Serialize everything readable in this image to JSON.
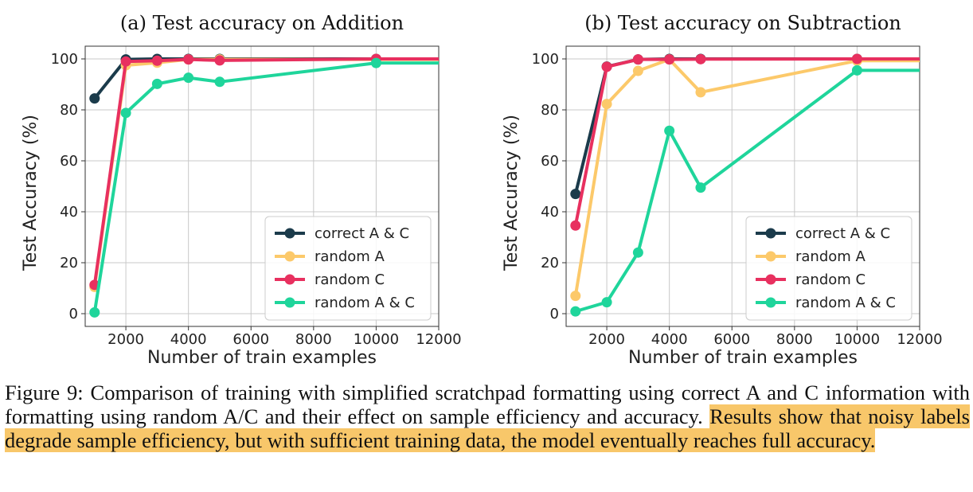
{
  "chart_data": [
    {
      "type": "line",
      "title": "(a) Test accuracy on Addition",
      "xlabel": "Number of train examples",
      "ylabel": "Test Accuracy (%)",
      "xlim": [
        700,
        12000
      ],
      "ylim": [
        -5,
        105
      ],
      "xticks": [
        2000,
        4000,
        6000,
        8000,
        10000,
        12000
      ],
      "yticks": [
        0,
        20,
        40,
        60,
        80,
        100
      ],
      "grid": true,
      "legend": "bottom-right",
      "series": [
        {
          "name": "correct A & C",
          "color": "#1b3b4b",
          "x": [
            1000,
            2000,
            3000,
            4000,
            5000,
            10000
          ],
          "y": [
            84.5,
            99.8,
            100,
            100,
            100,
            100
          ]
        },
        {
          "name": "random A",
          "color": "#fcc96a",
          "x": [
            1000,
            2000,
            3000,
            4000,
            5000,
            10000
          ],
          "y": [
            10.5,
            97.5,
            98.5,
            99.8,
            99.8,
            99.8
          ]
        },
        {
          "name": "random C",
          "color": "#e8305f",
          "x": [
            1000,
            2000,
            3000,
            4000,
            5000,
            10000
          ],
          "y": [
            11.3,
            99,
            99.3,
            99.8,
            99.4,
            100
          ]
        },
        {
          "name": "random A & C",
          "color": "#1fd59b",
          "x": [
            1000,
            2000,
            3000,
            4000,
            5000,
            10000
          ],
          "y": [
            0.5,
            78.8,
            90.2,
            92.6,
            91,
            98.4
          ]
        }
      ]
    },
    {
      "type": "line",
      "title": "(b) Test accuracy on Subtraction",
      "xlabel": "Number of train examples",
      "ylabel": "Test Accuracy (%)",
      "xlim": [
        700,
        12000
      ],
      "ylim": [
        -5,
        105
      ],
      "xticks": [
        2000,
        4000,
        6000,
        8000,
        10000,
        12000
      ],
      "yticks": [
        0,
        20,
        40,
        60,
        80,
        100
      ],
      "grid": true,
      "legend": "bottom-right",
      "series": [
        {
          "name": "correct A & C",
          "color": "#1b3b4b",
          "x": [
            1000,
            2000,
            3000,
            4000,
            5000,
            10000
          ],
          "y": [
            47,
            97,
            99.8,
            100,
            100,
            100
          ]
        },
        {
          "name": "random A",
          "color": "#fcc96a",
          "x": [
            1000,
            2000,
            3000,
            4000,
            5000,
            10000
          ],
          "y": [
            7,
            82.3,
            95.3,
            99.8,
            86.9,
            99.3
          ]
        },
        {
          "name": "random C",
          "color": "#e8305f",
          "x": [
            1000,
            2000,
            3000,
            4000,
            5000,
            10000
          ],
          "y": [
            34.6,
            96.9,
            99.8,
            99.8,
            99.9,
            100
          ]
        },
        {
          "name": "random A & C",
          "color": "#1fd59b",
          "x": [
            1000,
            2000,
            3000,
            4000,
            5000,
            10000
          ],
          "y": [
            0.9,
            4.5,
            24,
            71.8,
            49.5,
            95.5
          ]
        }
      ]
    }
  ],
  "caption": {
    "part1": "Figure 9: Comparison of training with simplified scratchpad formatting using correct A and C information with formatting using random A/C and their effect on sample efficiency and accuracy. ",
    "highlighted": "Results show that noisy labels degrade sample efficiency, but with sufficient training data, the model eventually reaches full accuracy."
  },
  "highlight_color": "#f8c76a"
}
